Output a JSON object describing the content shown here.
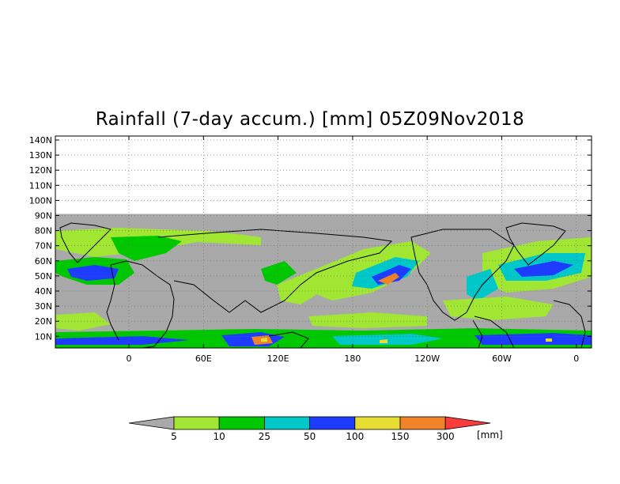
{
  "title": "Rainfall (7-day accum.) [mm] 05Z09Nov2018",
  "lat_labels": [
    "140N",
    "130N",
    "120N",
    "110N",
    "100N",
    "90N",
    "80N",
    "70N",
    "60N",
    "50N",
    "40N",
    "30N",
    "20N",
    "10N"
  ],
  "lon_labels": [
    "0",
    "60E",
    "120E",
    "180",
    "120W",
    "60W",
    "0"
  ],
  "colorbar": {
    "ticks": [
      "5",
      "10",
      "25",
      "50",
      "100",
      "150",
      "300"
    ],
    "unit": "[mm]",
    "colors": [
      "#a9a9a9",
      "#a0e632",
      "#00c800",
      "#00c8c8",
      "#1e3cff",
      "#e6dc32",
      "#f08228",
      "#fa3c3c"
    ]
  },
  "colors": {
    "no_rain": "#a9a9a9",
    "light": "#a0e632",
    "moderate": "#00c800",
    "heavy": "#00c8c8",
    "very_heavy": "#1e3cff",
    "intense": "#e6dc32",
    "extreme": "#f08228"
  }
}
